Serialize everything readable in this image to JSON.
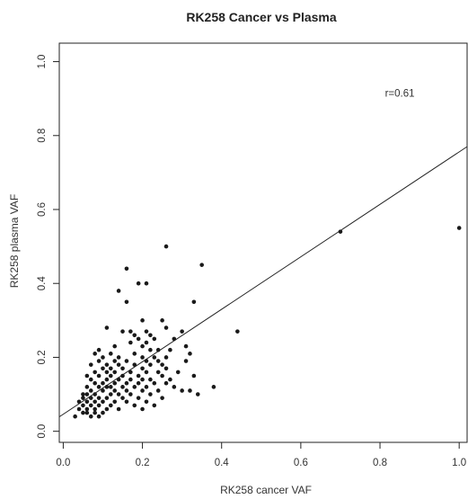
{
  "chart_data": {
    "type": "scatter",
    "title": "RK258 Cancer vs Plasma",
    "xlabel": "RK258 cancer VAF",
    "ylabel": "RK258 plasma VAF",
    "xlim": [
      -0.01,
      1.02
    ],
    "ylim": [
      -0.03,
      1.05
    ],
    "x_ticks": [
      {
        "value": 0.0,
        "label": "0.0"
      },
      {
        "value": 0.2,
        "label": "0.2"
      },
      {
        "value": 0.4,
        "label": "0.4"
      },
      {
        "value": 0.6,
        "label": "0.6"
      },
      {
        "value": 0.8,
        "label": "0.8"
      },
      {
        "value": 1.0,
        "label": "1.0"
      }
    ],
    "y_ticks": [
      {
        "value": 0.0,
        "label": "0.0"
      },
      {
        "value": 0.2,
        "label": "0.2"
      },
      {
        "value": 0.4,
        "label": "0.4"
      },
      {
        "value": 0.6,
        "label": "0.6"
      },
      {
        "value": 0.8,
        "label": "0.8"
      },
      {
        "value": 1.0,
        "label": "1.0"
      }
    ],
    "grid": false,
    "annotation": {
      "text": "r=0.61",
      "x": 0.85,
      "y": 0.905
    },
    "regression_line": {
      "x0": -0.01,
      "y0": 0.039,
      "x1": 1.02,
      "y1": 0.77
    },
    "points": [
      [
        0.03,
        0.04
      ],
      [
        0.04,
        0.06
      ],
      [
        0.04,
        0.08
      ],
      [
        0.05,
        0.05
      ],
      [
        0.05,
        0.07
      ],
      [
        0.05,
        0.09
      ],
      [
        0.05,
        0.1
      ],
      [
        0.06,
        0.05
      ],
      [
        0.06,
        0.06
      ],
      [
        0.06,
        0.08
      ],
      [
        0.06,
        0.1
      ],
      [
        0.06,
        0.12
      ],
      [
        0.06,
        0.15
      ],
      [
        0.07,
        0.04
      ],
      [
        0.07,
        0.07
      ],
      [
        0.07,
        0.09
      ],
      [
        0.07,
        0.11
      ],
      [
        0.07,
        0.14
      ],
      [
        0.07,
        0.18
      ],
      [
        0.08,
        0.05
      ],
      [
        0.08,
        0.06
      ],
      [
        0.08,
        0.08
      ],
      [
        0.08,
        0.1
      ],
      [
        0.08,
        0.13
      ],
      [
        0.08,
        0.16
      ],
      [
        0.08,
        0.21
      ],
      [
        0.09,
        0.04
      ],
      [
        0.09,
        0.07
      ],
      [
        0.09,
        0.09
      ],
      [
        0.09,
        0.12
      ],
      [
        0.09,
        0.15
      ],
      [
        0.09,
        0.19
      ],
      [
        0.09,
        0.22
      ],
      [
        0.1,
        0.05
      ],
      [
        0.1,
        0.08
      ],
      [
        0.1,
        0.11
      ],
      [
        0.1,
        0.13
      ],
      [
        0.1,
        0.17
      ],
      [
        0.1,
        0.2
      ],
      [
        0.11,
        0.06
      ],
      [
        0.11,
        0.09
      ],
      [
        0.11,
        0.12
      ],
      [
        0.11,
        0.14
      ],
      [
        0.11,
        0.16
      ],
      [
        0.11,
        0.18
      ],
      [
        0.11,
        0.28
      ],
      [
        0.12,
        0.07
      ],
      [
        0.12,
        0.1
      ],
      [
        0.12,
        0.12
      ],
      [
        0.12,
        0.15
      ],
      [
        0.12,
        0.17
      ],
      [
        0.12,
        0.21
      ],
      [
        0.13,
        0.08
      ],
      [
        0.13,
        0.11
      ],
      [
        0.13,
        0.13
      ],
      [
        0.13,
        0.16
      ],
      [
        0.13,
        0.19
      ],
      [
        0.13,
        0.23
      ],
      [
        0.14,
        0.06
      ],
      [
        0.14,
        0.1
      ],
      [
        0.14,
        0.14
      ],
      [
        0.14,
        0.18
      ],
      [
        0.14,
        0.2
      ],
      [
        0.14,
        0.38
      ],
      [
        0.15,
        0.09
      ],
      [
        0.15,
        0.12
      ],
      [
        0.15,
        0.15
      ],
      [
        0.15,
        0.17
      ],
      [
        0.15,
        0.27
      ],
      [
        0.16,
        0.08
      ],
      [
        0.16,
        0.11
      ],
      [
        0.16,
        0.13
      ],
      [
        0.16,
        0.19
      ],
      [
        0.16,
        0.35
      ],
      [
        0.16,
        0.44
      ],
      [
        0.17,
        0.1
      ],
      [
        0.17,
        0.14
      ],
      [
        0.17,
        0.16
      ],
      [
        0.17,
        0.24
      ],
      [
        0.17,
        0.27
      ],
      [
        0.18,
        0.07
      ],
      [
        0.18,
        0.12
      ],
      [
        0.18,
        0.18
      ],
      [
        0.18,
        0.21
      ],
      [
        0.18,
        0.26
      ],
      [
        0.19,
        0.09
      ],
      [
        0.19,
        0.13
      ],
      [
        0.19,
        0.15
      ],
      [
        0.19,
        0.25
      ],
      [
        0.19,
        0.4
      ],
      [
        0.2,
        0.06
      ],
      [
        0.2,
        0.11
      ],
      [
        0.2,
        0.14
      ],
      [
        0.2,
        0.17
      ],
      [
        0.2,
        0.2
      ],
      [
        0.2,
        0.23
      ],
      [
        0.2,
        0.3
      ],
      [
        0.21,
        0.08
      ],
      [
        0.21,
        0.12
      ],
      [
        0.21,
        0.16
      ],
      [
        0.21,
        0.19
      ],
      [
        0.21,
        0.24
      ],
      [
        0.21,
        0.27
      ],
      [
        0.21,
        0.4
      ],
      [
        0.22,
        0.1
      ],
      [
        0.22,
        0.14
      ],
      [
        0.22,
        0.18
      ],
      [
        0.22,
        0.22
      ],
      [
        0.22,
        0.26
      ],
      [
        0.23,
        0.07
      ],
      [
        0.23,
        0.13
      ],
      [
        0.23,
        0.2
      ],
      [
        0.23,
        0.25
      ],
      [
        0.24,
        0.11
      ],
      [
        0.24,
        0.16
      ],
      [
        0.24,
        0.19
      ],
      [
        0.24,
        0.22
      ],
      [
        0.25,
        0.09
      ],
      [
        0.25,
        0.15
      ],
      [
        0.25,
        0.18
      ],
      [
        0.25,
        0.3
      ],
      [
        0.26,
        0.13
      ],
      [
        0.26,
        0.17
      ],
      [
        0.26,
        0.2
      ],
      [
        0.26,
        0.28
      ],
      [
        0.26,
        0.5
      ],
      [
        0.27,
        0.14
      ],
      [
        0.27,
        0.22
      ],
      [
        0.28,
        0.12
      ],
      [
        0.28,
        0.25
      ],
      [
        0.29,
        0.16
      ],
      [
        0.3,
        0.11
      ],
      [
        0.3,
        0.27
      ],
      [
        0.31,
        0.19
      ],
      [
        0.31,
        0.23
      ],
      [
        0.32,
        0.11
      ],
      [
        0.32,
        0.21
      ],
      [
        0.33,
        0.15
      ],
      [
        0.33,
        0.35
      ],
      [
        0.34,
        0.1
      ],
      [
        0.35,
        0.45
      ],
      [
        0.38,
        0.12
      ],
      [
        0.44,
        0.27
      ],
      [
        0.7,
        0.54
      ],
      [
        1.0,
        0.55
      ]
    ]
  }
}
